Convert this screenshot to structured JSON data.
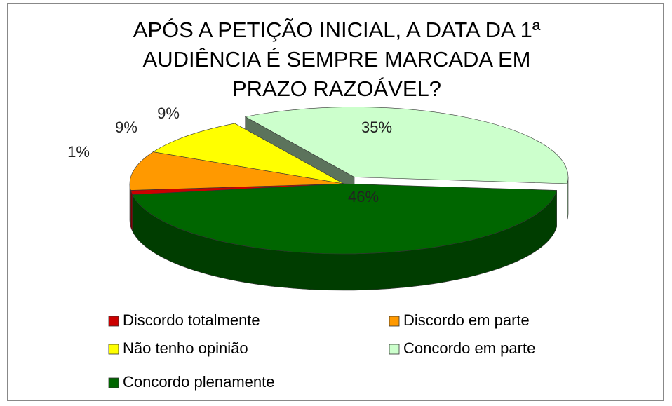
{
  "chart_data": {
    "type": "pie3d",
    "title": "APÓS A PETIÇÃO INICIAL, A DATA DA 1ª AUDIÊNCIA É SEMPRE MARCADA EM PRAZO RAZOÁVEL?",
    "categories": [
      "Discordo totalmente",
      "Discordo em parte",
      "Não tenho opinião",
      "Concordo em parte",
      "Concordo plenamente"
    ],
    "values": [
      1,
      9,
      9,
      35,
      46
    ],
    "value_labels": [
      "1%",
      "9%",
      "9%",
      "35%",
      "46%"
    ],
    "colors": [
      "#cc0000",
      "#ff9900",
      "#ffff00",
      "#ccffcc",
      "#006600"
    ],
    "legend": "bottom"
  }
}
